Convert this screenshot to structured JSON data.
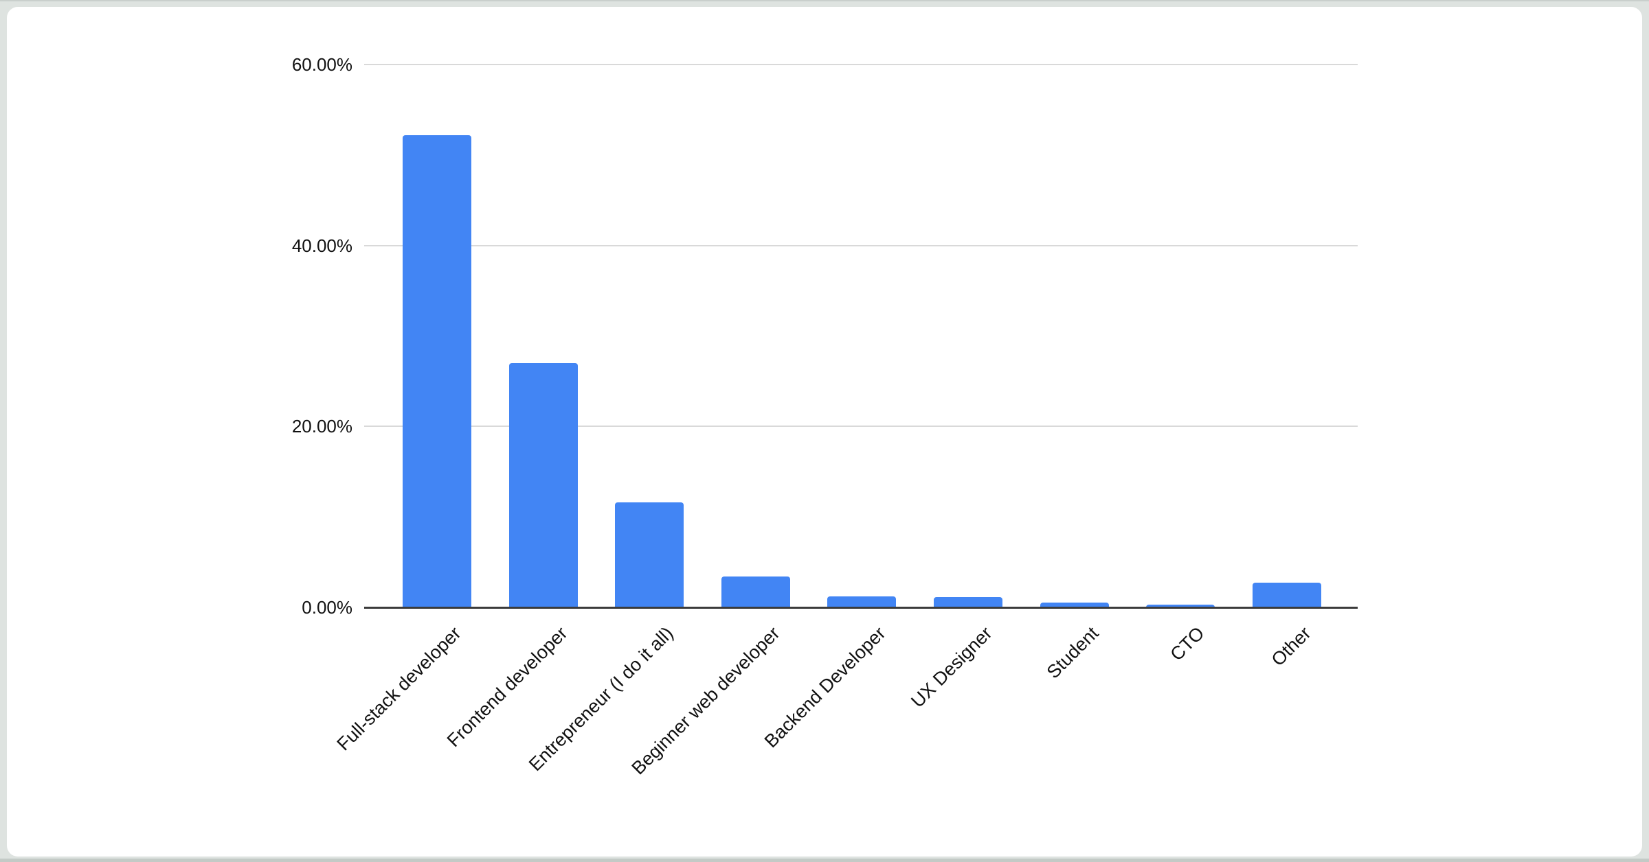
{
  "page": {
    "background_color": "#dee3e0",
    "card_background_color": "#ffffff"
  },
  "chart_data": {
    "type": "bar",
    "title": "",
    "xlabel": "",
    "ylabel": "",
    "categories": [
      "Full-stack developer",
      "Frontend developer",
      "Entrepreneur (I do it all)",
      "Beginner web developer",
      "Backend Developer",
      "UX Designer",
      "Student",
      "CTO",
      "Other"
    ],
    "values": [
      52.2,
      27.0,
      11.6,
      3.4,
      1.2,
      1.1,
      0.5,
      0.3,
      2.7
    ],
    "value_unit": "percent",
    "ylim": [
      0,
      60
    ],
    "yticks": [
      {
        "value": 0,
        "label": "0.00%"
      },
      {
        "value": 20,
        "label": "20.00%"
      },
      {
        "value": 40,
        "label": "40.00%"
      },
      {
        "value": 60,
        "label": "60.00%"
      }
    ],
    "grid": true,
    "legend": false,
    "x_label_rotation_deg": -45,
    "bar_color": "#4285f4",
    "gridline_color": "#d9d9d9",
    "axis_line_color": "#3b3b3b",
    "tick_label_color": "#111111"
  }
}
